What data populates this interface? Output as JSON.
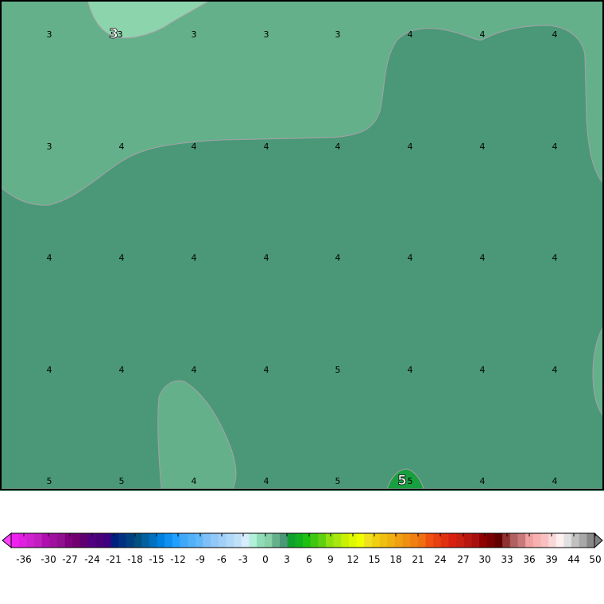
{
  "map": {
    "fill_colors": {
      "level_3": "#64b08a",
      "level_4": "#4a9878",
      "level_2": "#8cd4ac",
      "level_5": "#18a040"
    },
    "contour_color": "#a8a0a8",
    "grid_values": [
      [
        "3",
        "3",
        "3",
        "3",
        "3",
        "4",
        "4",
        "4"
      ],
      [
        "3",
        "4",
        "4",
        "4",
        "4",
        "4",
        "4",
        "4"
      ],
      [
        "4",
        "4",
        "4",
        "4",
        "4",
        "4",
        "4",
        "4"
      ],
      [
        "4",
        "4",
        "4",
        "4",
        "5",
        "4",
        "4",
        "4"
      ],
      [
        "5",
        "5",
        "4",
        "4",
        "5",
        "5",
        "4",
        "4"
      ]
    ],
    "contour_labels": [
      "3",
      "5"
    ]
  },
  "colorbar": {
    "tick_labels": [
      "-36",
      "-30",
      "-27",
      "-24",
      "-21",
      "-18",
      "-15",
      "-12",
      "-9",
      "-6",
      "-3",
      "0",
      "3",
      "6",
      "9",
      "12",
      "15",
      "18",
      "21",
      "24",
      "27",
      "30",
      "33",
      "36",
      "39",
      "44",
      "50"
    ],
    "left_arrow_color": "#ff40ff",
    "right_arrow_color": "#808080",
    "colors": [
      "#f020f0",
      "#e020e0",
      "#d020d0",
      "#c020c0",
      "#b010b0",
      "#a010a0",
      "#901090",
      "#800080",
      "#700070",
      "#600070",
      "#500080",
      "#480078",
      "#400080",
      "#002080",
      "#003080",
      "#004080",
      "#005080",
      "#0060a0",
      "#0070c0",
      "#0080e0",
      "#1090f0",
      "#20a0ff",
      "#40a8f8",
      "#50b0f8",
      "#60b8f8",
      "#80c0f8",
      "#90c8f8",
      "#a0d0f8",
      "#b0d8f8",
      "#c0e0f8",
      "#d8ecff",
      "#b0f0d8",
      "#90dcb8",
      "#88d0a8",
      "#64b08a",
      "#4a9878",
      "#10a030",
      "#10b020",
      "#20c010",
      "#40c810",
      "#60d010",
      "#90e010",
      "#a8e810",
      "#c8f000",
      "#e0f800",
      "#f0ff00",
      "#f0e020",
      "#f0d010",
      "#f0c010",
      "#f0b010",
      "#f0a010",
      "#f09010",
      "#f08010",
      "#f07010",
      "#f05010",
      "#e84010",
      "#e03010",
      "#d82010",
      "#c82010",
      "#b81810",
      "#a81010",
      "#900000",
      "#780000",
      "#600000",
      "#903030",
      "#b06060",
      "#c87878",
      "#f0a0a0",
      "#f8b0b0",
      "#f8c0c0",
      "#f8d8d8",
      "#fff0f0",
      "#e0e0e0",
      "#c0c0c0",
      "#a8a8a8",
      "#888888"
    ]
  }
}
